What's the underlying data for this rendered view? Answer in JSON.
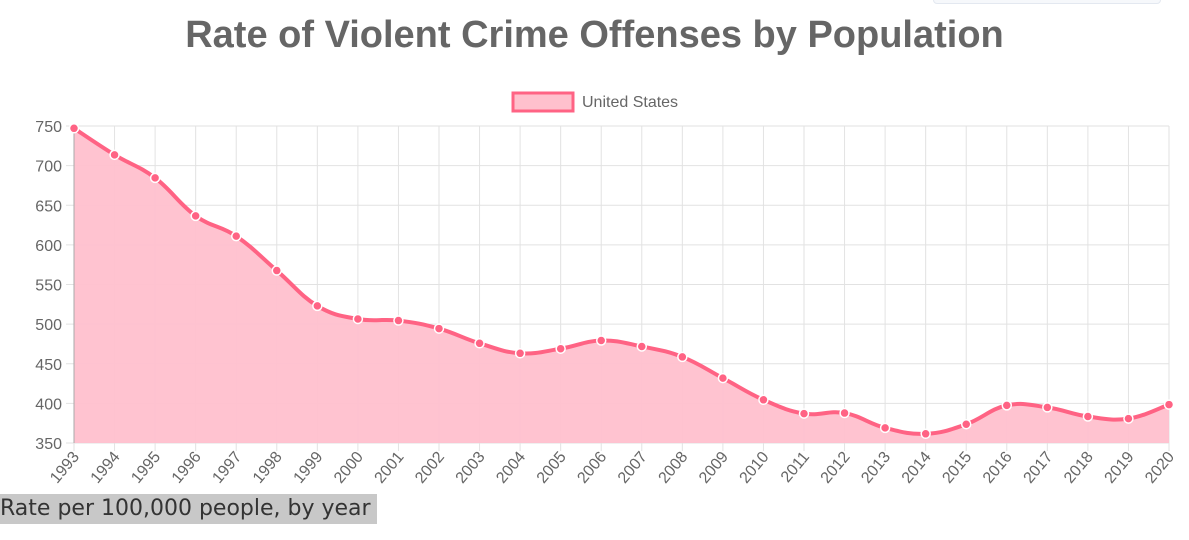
{
  "chart_data": {
    "type": "line",
    "title": "Rate of Violent Crime Offenses by Population",
    "categories": [
      "1993",
      "1994",
      "1995",
      "1996",
      "1997",
      "1998",
      "1999",
      "2000",
      "2001",
      "2002",
      "2003",
      "2004",
      "2005",
      "2006",
      "2007",
      "2008",
      "2009",
      "2010",
      "2011",
      "2012",
      "2013",
      "2014",
      "2015",
      "2016",
      "2017",
      "2018",
      "2019",
      "2020"
    ],
    "series": [
      {
        "name": "United States",
        "values": [
          747.1,
          713.6,
          684.5,
          636.6,
          611.0,
          567.6,
          523.0,
          506.5,
          504.5,
          494.4,
          475.8,
          463.2,
          469.0,
          479.3,
          471.8,
          458.6,
          431.9,
          404.5,
          387.1,
          387.8,
          369.1,
          361.6,
          373.7,
          397.5,
          394.9,
          383.4,
          380.8,
          398.5
        ],
        "color": "#ff6384",
        "fill": "#ffc0cd"
      }
    ],
    "ylim": [
      350,
      750
    ],
    "yticks": [
      350,
      400,
      450,
      500,
      550,
      600,
      650,
      700,
      750
    ],
    "grid": true,
    "legend": "top-center",
    "xlabel": "",
    "ylabel": ""
  },
  "caption": "Rate per 100,000 people, by year"
}
